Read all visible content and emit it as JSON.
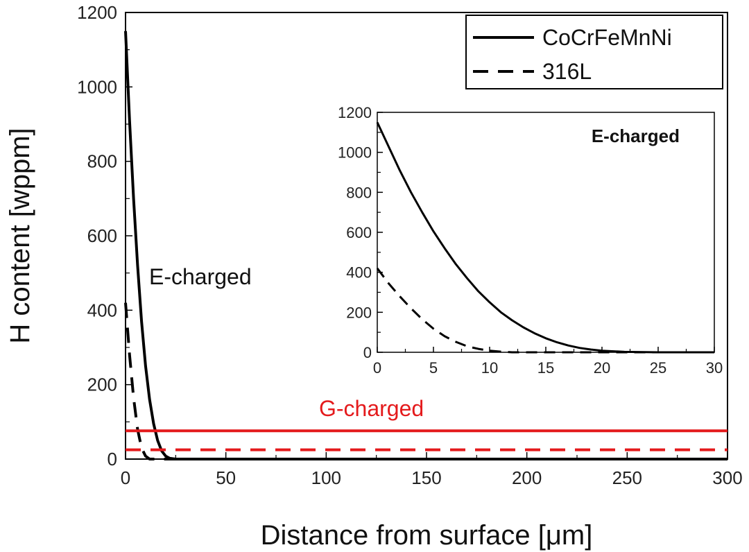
{
  "chart_data": [
    {
      "type": "line",
      "xlabel": "Distance from surface [μm]",
      "ylabel": "H content [wppm]",
      "xlim": [
        0,
        300
      ],
      "ylim": [
        0,
        1200
      ],
      "xticks": [
        0,
        50,
        100,
        150,
        200,
        250,
        300
      ],
      "yticks": [
        0,
        200,
        400,
        600,
        800,
        1000,
        1200
      ],
      "x_tick_labels": [
        "0",
        "50",
        "100",
        "150",
        "200",
        "250",
        "300"
      ],
      "y_tick_labels": [
        "0",
        "200",
        "400",
        "600",
        "800",
        "1000",
        "1200"
      ],
      "legend": {
        "placement": "top-right",
        "entries": [
          {
            "label": "CoCrFeMnNi",
            "style": "solid"
          },
          {
            "label": "316L",
            "style": "dashed"
          }
        ]
      },
      "annotations": [
        {
          "text": "E-charged",
          "color": "#111111"
        },
        {
          "text": "G-charged",
          "color": "#e41a1c"
        }
      ],
      "series": [
        {
          "name": "CoCrFeMnNi",
          "group": "E-charged",
          "style": "solid",
          "color": "#000000",
          "x": [
            0,
            2,
            4,
            6,
            8,
            10,
            12,
            14,
            16,
            18,
            20,
            22,
            25,
            300
          ],
          "y": [
            1150,
            910,
            700,
            520,
            370,
            250,
            160,
            95,
            50,
            22,
            8,
            2,
            0,
            0
          ]
        },
        {
          "name": "316L",
          "group": "E-charged",
          "style": "dashed",
          "color": "#000000",
          "x": [
            0,
            2,
            4,
            6,
            8,
            10,
            12,
            300
          ],
          "y": [
            420,
            280,
            165,
            80,
            30,
            8,
            0,
            0
          ]
        },
        {
          "name": "CoCrFeMnNi",
          "group": "G-charged",
          "style": "solid",
          "color": "#e41a1c",
          "x": [
            0,
            300
          ],
          "y": [
            76,
            76
          ]
        },
        {
          "name": "316L",
          "group": "G-charged",
          "style": "dashed",
          "color": "#e41a1c",
          "x": [
            0,
            300
          ],
          "y": [
            25,
            25
          ]
        }
      ]
    },
    {
      "type": "line",
      "role": "inset",
      "xlim": [
        0,
        30
      ],
      "ylim": [
        0,
        1200
      ],
      "xticks": [
        0,
        5,
        10,
        15,
        20,
        25,
        30
      ],
      "yticks": [
        0,
        200,
        400,
        600,
        800,
        1000,
        1200
      ],
      "x_tick_labels": [
        "0",
        "5",
        "10",
        "15",
        "20",
        "25",
        "30"
      ],
      "y_tick_labels": [
        "0",
        "200",
        "400",
        "600",
        "800",
        "1000",
        "1200"
      ],
      "annotation": "E-charged",
      "series": [
        {
          "name": "CoCrFeMnNi",
          "style": "solid",
          "color": "#000000",
          "x": [
            0,
            1,
            2,
            3,
            4,
            5,
            6,
            7,
            8,
            9,
            10,
            11,
            12,
            13,
            14,
            15,
            16,
            17,
            18,
            19,
            20,
            22,
            25,
            30
          ],
          "y": [
            1150,
            1030,
            910,
            800,
            700,
            605,
            520,
            440,
            370,
            305,
            250,
            200,
            160,
            125,
            95,
            70,
            50,
            34,
            22,
            14,
            8,
            2,
            0,
            0
          ]
        },
        {
          "name": "316L",
          "style": "dashed",
          "color": "#000000",
          "x": [
            0,
            1,
            2,
            3,
            4,
            5,
            6,
            7,
            8,
            9,
            10,
            11,
            12,
            14,
            16,
            20,
            25,
            30
          ],
          "y": [
            420,
            345,
            280,
            220,
            165,
            118,
            80,
            52,
            30,
            17,
            8,
            3,
            0,
            0,
            0,
            0,
            0,
            0
          ]
        }
      ]
    }
  ]
}
